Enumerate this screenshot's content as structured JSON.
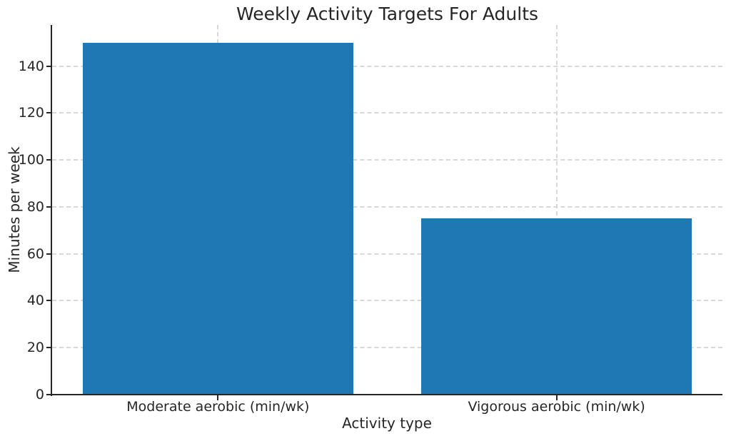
{
  "chart_data": {
    "type": "bar",
    "title": "Weekly Activity Targets For Adults",
    "xlabel": "Activity type",
    "ylabel": "Minutes per week",
    "categories": [
      "Moderate aerobic (min/wk)",
      "Vigorous aerobic (min/wk)"
    ],
    "values": [
      150,
      75
    ],
    "yticks": [
      0,
      20,
      40,
      60,
      80,
      100,
      120,
      140
    ],
    "ylim": [
      0,
      157.5
    ],
    "legend": "none",
    "grid": {
      "axis": "both",
      "style": "dashed",
      "color": "#d8d8d8",
      "below_bars": true
    },
    "bar_color": "#1f77b4",
    "axis_color": "#262626",
    "background_color": "#ffffff"
  }
}
